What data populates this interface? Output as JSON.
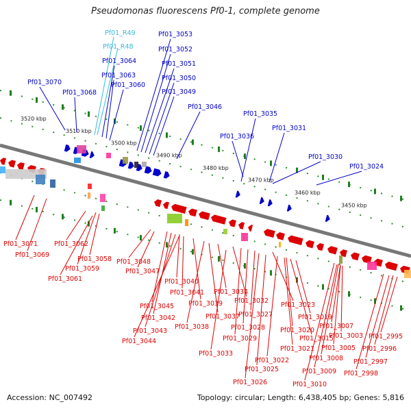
{
  "title": "Pseudomonas fluorescens Pf0-1, complete genome",
  "footer": {
    "accession": "Accession: NC_007492",
    "topology": "Topology: circular; Length: 6,438,405 bp; Genes: 5,816"
  },
  "colors": {
    "forward": "#0000cc",
    "reverse": "#dd0000",
    "rna": "#33bbdd",
    "backbone": "#777777"
  },
  "kbp_ticks": [
    "3520 kbp",
    "3510 kbp",
    "3500 kbp",
    "3490 kbp",
    "3480 kbp",
    "3470 kbp",
    "3460 kbp",
    "3450 kbp"
  ],
  "top_labels": [
    "Pf01_R49",
    "Pf01_R48",
    "Pf01_3064",
    "Pf01_3063",
    "Pf01_3060",
    "Pf01_3070",
    "Pf01_3068",
    "Pf01_3053",
    "Pf01_3052",
    "Pf01_3051",
    "Pf01_3050",
    "Pf01_3049",
    "Pf01_3046",
    "Pf01_3036",
    "Pf01_3035",
    "Pf01_3031",
    "Pf01_3030",
    "Pf01_3024"
  ],
  "bottom_labels": [
    "Pf01_3071",
    "Pf01_3069",
    "Pf01_3062",
    "Pf01_3058",
    "Pf01_3059",
    "Pf01_3061",
    "Pf01_3048",
    "Pf01_3047",
    "Pf01_3040",
    "Pf01_3041",
    "Pf01_3045",
    "Pf01_3039",
    "Pf01_3042",
    "Pf01_3043",
    "Pf01_3044",
    "Pf01_3038",
    "Pf01_3037",
    "Pf01_3034",
    "Pf01_3032",
    "Pf01_3033",
    "Pf01_3027",
    "Pf01_3028",
    "Pf01_3029",
    "Pf01_3023",
    "Pf01_3025",
    "Pf01_3026",
    "Pf01_3022",
    "Pf01_3021",
    "Pf01_3020",
    "Pf01_3019",
    "Pf01_3015",
    "Pf01_3007",
    "Pf01_3003",
    "Pf01_3005",
    "Pf01_3008",
    "Pf01_3009",
    "Pf01_3010",
    "Pf01_2995",
    "Pf01_2996",
    "Pf01_2997",
    "Pf01_2998"
  ]
}
